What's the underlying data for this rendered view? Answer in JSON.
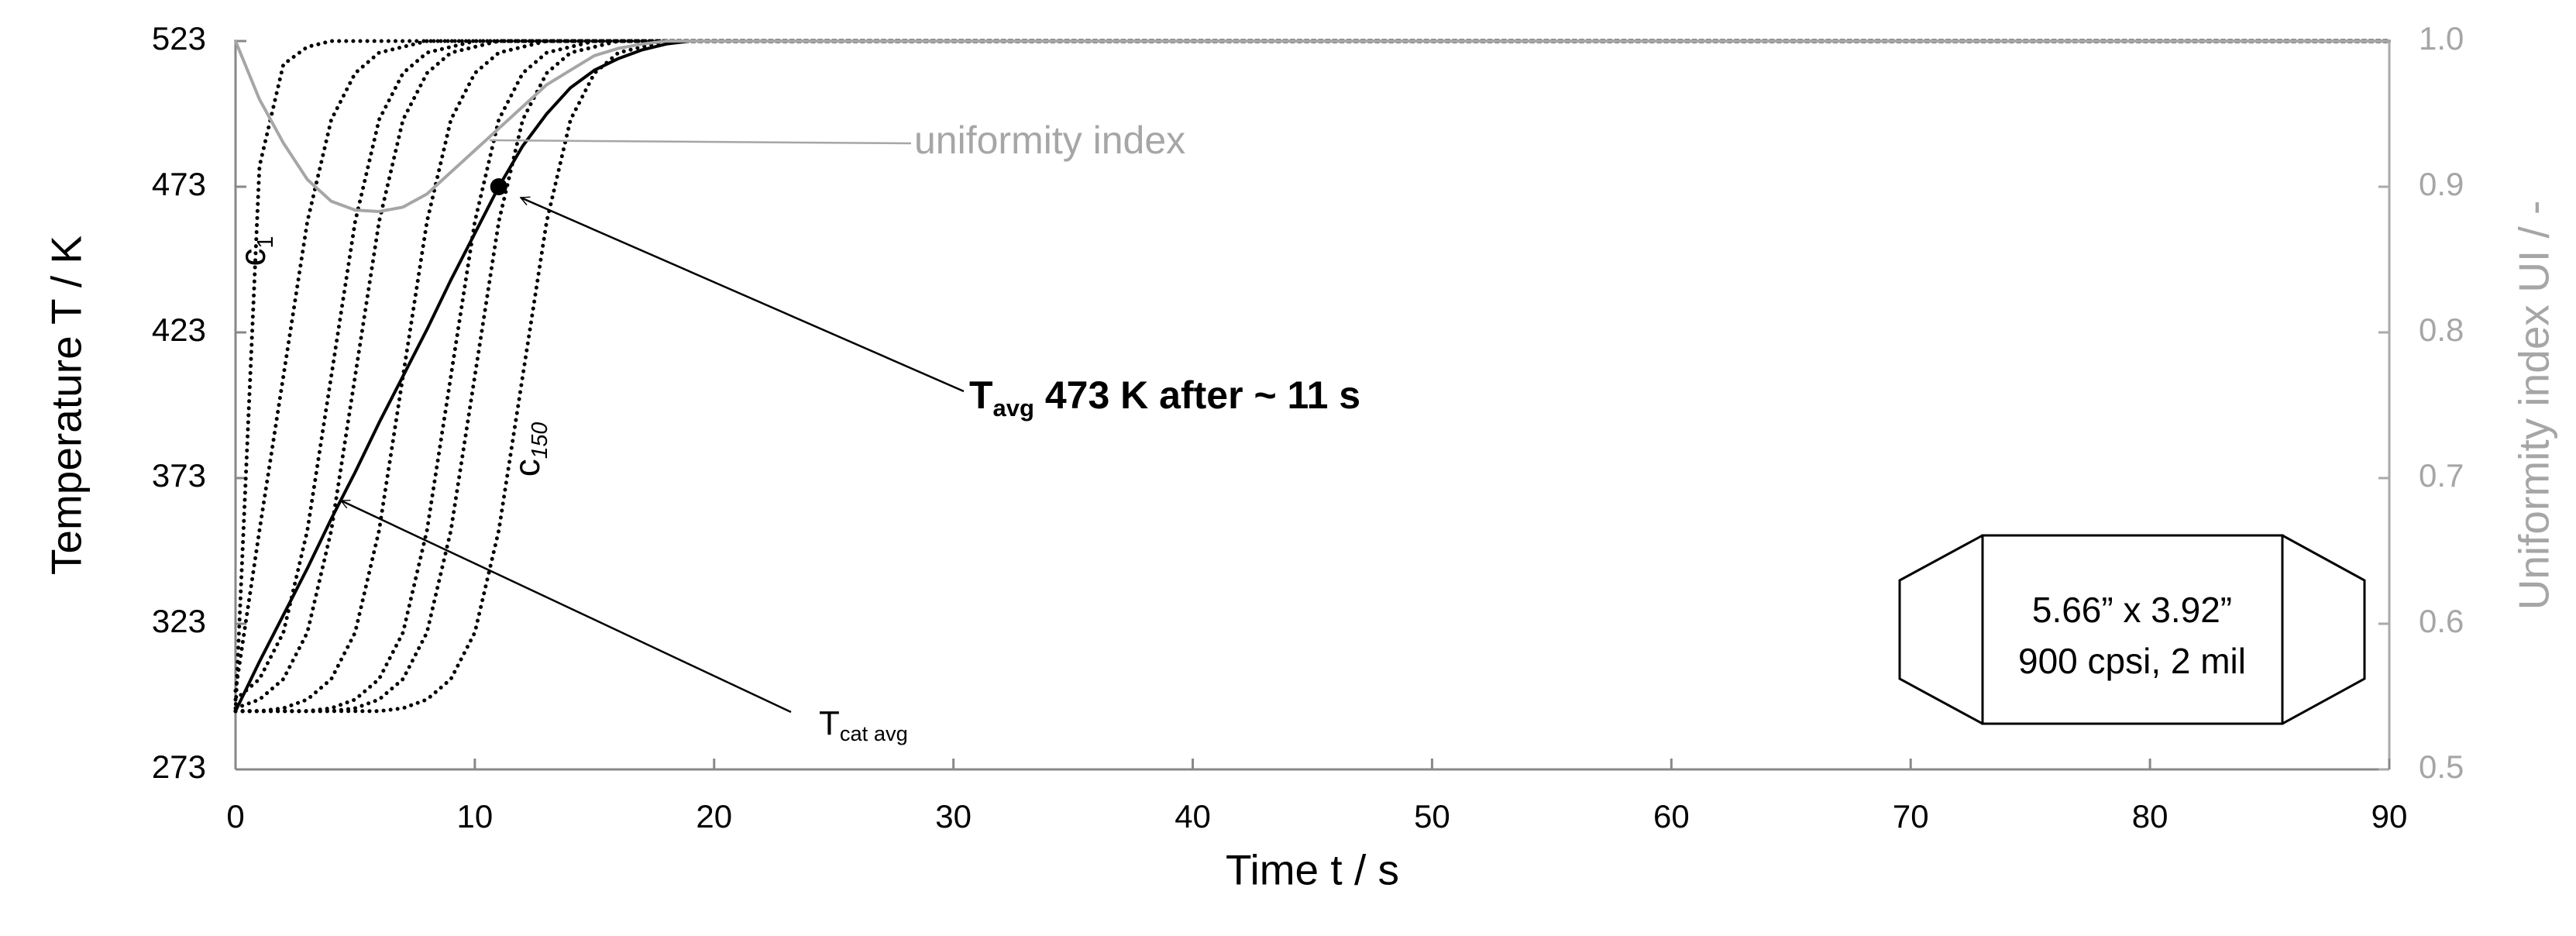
{
  "chart_data": {
    "type": "line",
    "x_label": "Time t  / s",
    "y_label": "Temperature T / K",
    "y2_label": "Uniformity index UI / -",
    "x": [
      0,
      1,
      2,
      3,
      4,
      5,
      6,
      7,
      8,
      9,
      10,
      11,
      12,
      13,
      14,
      15,
      16,
      17,
      18,
      19,
      20,
      90
    ],
    "xlim": [
      0,
      90
    ],
    "xticks": [
      0,
      10,
      20,
      30,
      40,
      50,
      60,
      70,
      80,
      90
    ],
    "ylim": [
      273,
      523
    ],
    "yticks": [
      273,
      323,
      373,
      423,
      473,
      523
    ],
    "y2lim": [
      0.5,
      1
    ],
    "y2ticks": [
      0.5,
      0.6,
      0.7,
      0.8,
      0.9,
      {
        "value": 1,
        "label": "1.0"
      }
    ],
    "series": [
      {
        "color": "#000000",
        "style": "dotted",
        "values": [
          293,
          480,
          515,
          521,
          523,
          523,
          523,
          523,
          523,
          523,
          523,
          523,
          523,
          523,
          523,
          523,
          523,
          523,
          523,
          523,
          523,
          523
        ]
      },
      {
        "color": "#000000",
        "style": "dotted",
        "values": [
          300,
          355,
          408,
          461,
          496,
          512,
          519,
          521,
          523,
          523,
          523,
          523,
          523,
          523,
          523,
          523,
          523,
          523,
          523,
          523,
          523,
          523
        ]
      },
      {
        "color": "#000000",
        "style": "dotted",
        "values": [
          297,
          304,
          320,
          355,
          408,
          461,
          496,
          512,
          519,
          521,
          523,
          523,
          523,
          523,
          523,
          523,
          523,
          523,
          523,
          523,
          523,
          523
        ]
      },
      {
        "color": "#000000",
        "style": "dotted",
        "values": [
          294,
          297,
          304,
          320,
          355,
          408,
          461,
          496,
          512,
          519,
          521,
          523,
          523,
          523,
          523,
          523,
          523,
          523,
          523,
          523,
          523,
          523
        ]
      },
      {
        "color": "#000000",
        "style": "dotted",
        "values": [
          293,
          293,
          294,
          297,
          304,
          320,
          355,
          408,
          461,
          496,
          512,
          519,
          521,
          523,
          523,
          523,
          523,
          523,
          523,
          523,
          523,
          523
        ]
      },
      {
        "color": "#000000",
        "style": "dotted",
        "values": [
          293,
          293,
          293,
          293,
          294,
          297,
          304,
          320,
          355,
          408,
          461,
          496,
          512,
          519,
          521,
          523,
          523,
          523,
          523,
          523,
          523,
          523
        ]
      },
      {
        "color": "#000000",
        "style": "dotted",
        "values": [
          293,
          293,
          293,
          293,
          293,
          294,
          297,
          304,
          320,
          355,
          408,
          461,
          496,
          512,
          519,
          521,
          523,
          523,
          523,
          523,
          523,
          523
        ]
      },
      {
        "color": "#000000",
        "style": "dotted",
        "values": [
          293,
          293,
          293,
          293,
          293,
          293,
          293,
          294,
          297,
          304,
          320,
          355,
          408,
          461,
          496,
          512,
          519,
          521,
          523,
          523,
          523,
          523
        ]
      },
      {
        "color": "#000000",
        "style": "solid",
        "values": [
          293,
          310,
          326,
          342,
          359,
          375,
          392,
          408,
          424,
          441,
          457,
          473,
          487,
          498,
          507,
          513,
          517,
          520,
          522,
          523,
          523,
          523
        ]
      },
      {
        "color": "#a6a6a6",
        "style": "solid",
        "axis": "y2",
        "values": [
          1,
          0.96,
          0.93,
          0.905,
          0.89,
          0.884,
          0.883,
          0.886,
          0.895,
          0.91,
          0.925,
          0.94,
          0.955,
          0.97,
          0.98,
          0.99,
          0.995,
          0.998,
          1,
          1,
          1,
          1
        ]
      }
    ],
    "annotations": [
      {
        "text": "uniformity index"
      },
      {
        "text": "T",
        "sub": "avg",
        "rest": " 473 K after ~ 11 s"
      },
      {
        "text": "T",
        "sub": "cat avg"
      },
      {
        "text": "c",
        "sub": "1"
      },
      {
        "text": "c",
        "sub": "150"
      }
    ],
    "box_text": [
      "5.66” x 3.92”",
      "900 cpsi, 2 mil"
    ]
  }
}
